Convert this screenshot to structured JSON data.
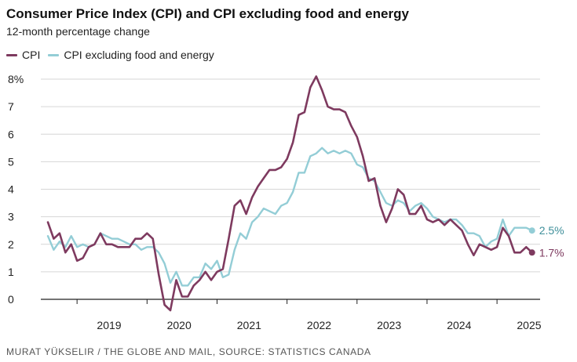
{
  "title": "Consumer Price Index (CPI) and CPI excluding food and energy",
  "subtitle": "12-month percentage change",
  "source": "MURAT YÜKSELIR / THE GLOBE AND MAIL, SOURCE: STATISTICS CANADA",
  "colors": {
    "cpi": "#7e3a5f",
    "core": "#93cdd6",
    "grid": "#d6d6d6",
    "axis": "#222222",
    "core_label": "#3e8f9a"
  },
  "chart_data": {
    "type": "line",
    "title": "Consumer Price Index (CPI) and CPI excluding food and energy",
    "subtitle": "12-month percentage change",
    "xlabel": "",
    "ylabel": "",
    "ylim": [
      0,
      8
    ],
    "yticks": [
      "0",
      "1",
      "2",
      "3",
      "4",
      "5",
      "6",
      "7",
      "8%"
    ],
    "x_tick_labels": [
      "2019",
      "2020",
      "2021",
      "2022",
      "2023",
      "2024",
      "2025"
    ],
    "x_start": "2018-08",
    "x_end": "2025-07",
    "grid": "horizontal",
    "legend_position": "top-left",
    "series": [
      {
        "name": "CPI",
        "key": "cpi",
        "end_label": "1.7%",
        "values": [
          2.8,
          2.2,
          2.4,
          1.7,
          2.0,
          1.4,
          1.5,
          1.9,
          2.0,
          2.4,
          2.0,
          2.0,
          1.9,
          1.9,
          1.9,
          2.2,
          2.2,
          2.4,
          2.2,
          0.9,
          -0.2,
          -0.4,
          0.7,
          0.1,
          0.1,
          0.5,
          0.7,
          1.0,
          0.7,
          1.0,
          1.1,
          2.2,
          3.4,
          3.6,
          3.1,
          3.7,
          4.1,
          4.4,
          4.7,
          4.7,
          4.8,
          5.1,
          5.7,
          6.7,
          6.8,
          7.7,
          8.1,
          7.6,
          7.0,
          6.9,
          6.9,
          6.8,
          6.3,
          5.9,
          5.2,
          4.3,
          4.4,
          3.4,
          2.8,
          3.3,
          4.0,
          3.8,
          3.1,
          3.1,
          3.4,
          2.9,
          2.8,
          2.9,
          2.7,
          2.9,
          2.7,
          2.5,
          2.0,
          1.6,
          2.0,
          1.9,
          1.8,
          1.9,
          2.6,
          2.3,
          1.7,
          1.7,
          1.9,
          1.7
        ]
      },
      {
        "name": "CPI excluding food and energy",
        "key": "core",
        "end_label": "2.5%",
        "values": [
          2.3,
          1.8,
          2.1,
          1.9,
          2.3,
          1.9,
          2.0,
          1.9,
          2.0,
          2.4,
          2.3,
          2.2,
          2.2,
          2.1,
          2.0,
          2.0,
          1.8,
          1.9,
          1.9,
          1.7,
          1.3,
          0.6,
          1.0,
          0.5,
          0.5,
          0.8,
          0.8,
          1.3,
          1.1,
          1.4,
          0.8,
          0.9,
          1.8,
          2.4,
          2.2,
          2.8,
          3.0,
          3.3,
          3.2,
          3.1,
          3.4,
          3.5,
          3.9,
          4.6,
          4.6,
          5.2,
          5.3,
          5.5,
          5.3,
          5.4,
          5.3,
          5.4,
          5.3,
          4.9,
          4.8,
          4.4,
          4.3,
          3.9,
          3.5,
          3.4,
          3.6,
          3.5,
          3.2,
          3.4,
          3.5,
          3.3,
          3.0,
          2.9,
          2.8,
          2.9,
          2.9,
          2.7,
          2.4,
          2.4,
          2.3,
          1.9,
          2.1,
          2.2,
          2.9,
          2.3,
          2.6,
          2.6,
          2.6,
          2.5
        ]
      }
    ]
  }
}
